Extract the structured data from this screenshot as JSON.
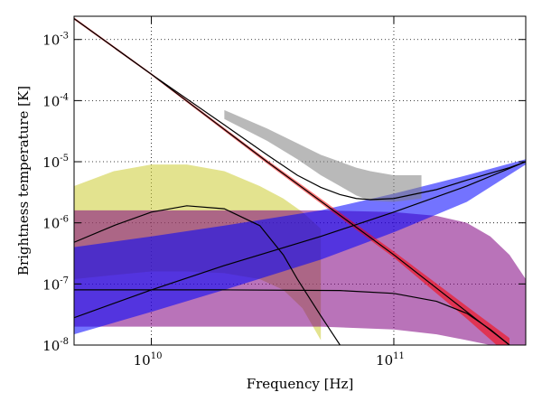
{
  "chart_data": {
    "type": "line",
    "xlabel": "Frequency [Hz]",
    "ylabel": "Brightness temperature [K]",
    "x_scale": "log",
    "y_scale": "log",
    "xlim": [
      4800000000.0,
      350000000000.0
    ],
    "ylim": [
      1e-08,
      0.0024
    ],
    "grid": true,
    "x_ticks": [
      {
        "value": 10000000000.0,
        "base": "10",
        "exp": "10"
      },
      {
        "value": 100000000000.0,
        "base": "10",
        "exp": "11"
      }
    ],
    "y_ticks": [
      {
        "value": 0.001,
        "base": "10",
        "exp": "-3"
      },
      {
        "value": 0.0001,
        "base": "10",
        "exp": "-4"
      },
      {
        "value": 1e-05,
        "base": "10",
        "exp": "-5"
      },
      {
        "value": 1e-06,
        "base": "10",
        "exp": "-6"
      },
      {
        "value": 1e-07,
        "base": "10",
        "exp": "-7"
      },
      {
        "value": 1e-08,
        "base": "10",
        "exp": "-8"
      }
    ],
    "series": [
      {
        "color": "#cccc33",
        "role": "band",
        "x": [
          4800000000.0,
          7000000000.0,
          10000000000.0,
          14000000000.0,
          20000000000.0,
          28000000000.0,
          35000000000.0,
          42000000000.0,
          50000000000.0
        ],
        "lower": [
          1.2e-07,
          1.4e-07,
          1.6e-07,
          1.6e-07,
          1.5e-07,
          1.2e-07,
          8e-08,
          4e-08,
          1.2e-08
        ],
        "upper": [
          4e-06,
          7e-06,
          9e-06,
          9e-06,
          7e-06,
          4e-06,
          2.5e-06,
          1.5e-06,
          8e-07
        ]
      },
      {
        "color": "#800080",
        "role": "band",
        "x": [
          4800000000.0,
          20000000000.0,
          50000000000.0,
          100000000000.0,
          150000000000.0,
          200000000000.0,
          250000000000.0,
          300000000000.0,
          350000000000.0
        ],
        "lower": [
          2e-08,
          2e-08,
          2e-08,
          1.8e-08,
          1.5e-08,
          1.2e-08,
          1e-08,
          1e-08,
          1e-08
        ],
        "upper": [
          1.6e-06,
          1.6e-06,
          1.6e-06,
          1.5e-06,
          1.3e-06,
          1e-06,
          6e-07,
          3e-07,
          1.2e-07
        ]
      },
      {
        "color": "#0000ff",
        "role": "band",
        "x": [
          4800000000.0,
          10000000000.0,
          20000000000.0,
          50000000000.0,
          100000000000.0,
          200000000000.0,
          350000000000.0
        ],
        "lower": [
          1.5e-08,
          3.5e-08,
          8e-08,
          2.5e-07,
          7e-07,
          2.2e-06,
          9e-06
        ],
        "upper": [
          4e-07,
          6e-07,
          9e-07,
          1.6e-06,
          3e-06,
          6e-06,
          1.1e-05
        ]
      },
      {
        "color": "#808080",
        "role": "band",
        "x": [
          20000000000.0,
          30000000000.0,
          40000000000.0,
          50000000000.0,
          60000000000.0,
          70000000000.0,
          80000000000.0,
          100000000000.0,
          130000000000.0
        ],
        "lower": [
          5e-05,
          2.2e-05,
          1.1e-05,
          6e-06,
          4e-06,
          2.8e-06,
          2.3e-06,
          2.2e-06,
          2.5e-06
        ],
        "upper": [
          7e-05,
          3.5e-05,
          2e-05,
          1.3e-05,
          1e-05,
          8e-06,
          7e-06,
          6e-06,
          6e-06
        ]
      },
      {
        "color": "#ff0000",
        "role": "band",
        "x": [
          4800000000.0,
          10000000000.0,
          30000000000.0,
          100000000000.0,
          200000000000.0,
          300000000000.0
        ],
        "lower": [
          0.0021,
          0.00026,
          9.3e-06,
          2.7e-07,
          2.7e-08,
          6.5e-09
        ],
        "upper": [
          0.0023,
          0.00028,
          1.07e-05,
          3.4e-07,
          4.3e-08,
          1.3e-08
        ]
      },
      {
        "color": "#000000",
        "role": "line",
        "x": [
          4800000000.0,
          10000000000.0,
          30000000000.0,
          100000000000.0,
          200000000000.0,
          300000000000.0
        ],
        "y": [
          0.0022,
          0.00027,
          1e-05,
          3e-07,
          3.5e-08,
          1e-08
        ]
      },
      {
        "color": "#000000",
        "role": "line",
        "x": [
          4800000000.0,
          10000000000.0,
          20000000000.0,
          30000000000.0,
          40000000000.0,
          50000000000.0,
          60000000000.0,
          70000000000.0,
          80000000000.0,
          100000000000.0,
          150000000000.0,
          200000000000.0,
          300000000000.0,
          350000000000.0
        ],
        "y": [
          0.0022,
          0.00027,
          4e-05,
          1.3e-05,
          6e-06,
          3.8e-06,
          2.9e-06,
          2.5e-06,
          2.4e-06,
          2.5e-06,
          3.5e-06,
          5e-06,
          8e-06,
          1e-05
        ]
      },
      {
        "color": "#000000",
        "role": "line",
        "x": [
          4800000000.0,
          10000000000.0,
          20000000000.0,
          50000000000.0,
          100000000000.0,
          200000000000.0,
          350000000000.0
        ],
        "y": [
          2.8e-08,
          8e-08,
          2e-07,
          6e-07,
          1.5e-06,
          4e-06,
          1e-05
        ]
      },
      {
        "color": "#000000",
        "role": "line",
        "x": [
          4800000000.0,
          7000000000.0,
          10000000000.0,
          14000000000.0,
          20000000000.0,
          28000000000.0,
          35000000000.0,
          40000000000.0,
          50000000000.0,
          60000000000.0
        ],
        "y": [
          4.8e-07,
          9e-07,
          1.5e-06,
          1.9e-06,
          1.7e-06,
          9e-07,
          3e-07,
          1.2e-07,
          3e-08,
          1e-08
        ]
      },
      {
        "color": "#000000",
        "role": "line",
        "x": [
          4800000000.0,
          20000000000.0,
          60000000000.0,
          100000000000.0,
          150000000000.0,
          200000000000.0,
          250000000000.0,
          300000000000.0
        ],
        "y": [
          8e-08,
          8e-08,
          7.8e-08,
          7e-08,
          5.2e-08,
          3.3e-08,
          1.8e-08,
          1e-08
        ]
      }
    ]
  }
}
